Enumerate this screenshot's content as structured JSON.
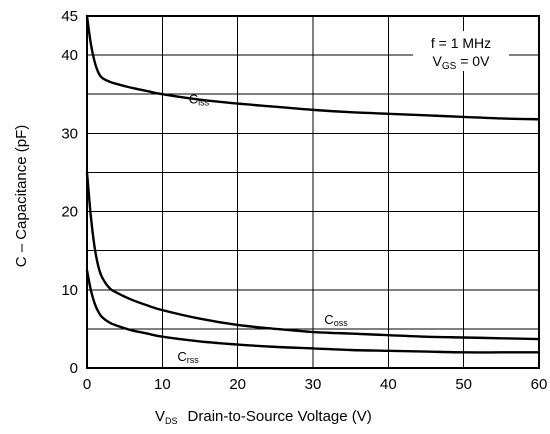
{
  "chart_data": {
    "type": "line",
    "xlabel_prefix": "V",
    "xlabel_prefix_sub": "DS",
    "xlabel": "Drain-to-Source Voltage (V)",
    "ylabel": "C – Capacitance (pF)",
    "xlim": [
      0,
      60
    ],
    "ylim": [
      0,
      45
    ],
    "x_ticks": [
      0,
      10,
      20,
      30,
      40,
      50,
      60
    ],
    "y_ticks": [
      0,
      10,
      20,
      30,
      40,
      45
    ],
    "grid": true,
    "annotation": {
      "line1": "f = 1 MHz",
      "line2_main": "V",
      "line2_sub": "GS",
      "line2_rest": " = 0V"
    },
    "series": [
      {
        "name_main": "C",
        "name_sub": "iss",
        "label_x": 13.5,
        "label_y": 33.8,
        "x": [
          0,
          0.5,
          1,
          1.5,
          2,
          3,
          4,
          6,
          8,
          10,
          15,
          20,
          25,
          30,
          35,
          40,
          45,
          50,
          55,
          60
        ],
        "y": [
          45,
          41.5,
          39.2,
          37.8,
          37.1,
          36.6,
          36.3,
          35.8,
          35.4,
          35.0,
          34.3,
          33.8,
          33.4,
          33.0,
          32.7,
          32.5,
          32.3,
          32.1,
          31.9,
          31.8
        ]
      },
      {
        "name_main": "C",
        "name_sub": "oss",
        "label_x": 31.5,
        "label_y": 5.6,
        "x": [
          0,
          0.5,
          1,
          1.5,
          2,
          3,
          4,
          6,
          8,
          10,
          15,
          20,
          25,
          30,
          35,
          40,
          45,
          50,
          55,
          60
        ],
        "y": [
          25,
          19.5,
          15.5,
          13.0,
          11.6,
          10.2,
          9.6,
          8.7,
          8.0,
          7.4,
          6.3,
          5.5,
          5.0,
          4.6,
          4.4,
          4.2,
          4.0,
          3.9,
          3.8,
          3.7
        ]
      },
      {
        "name_main": "C",
        "name_sub": "rss",
        "label_x": 12.0,
        "label_y": 0.9,
        "x": [
          0,
          0.5,
          1,
          1.5,
          2,
          3,
          4,
          6,
          8,
          10,
          15,
          20,
          25,
          30,
          35,
          40,
          45,
          50,
          55,
          60
        ],
        "y": [
          12.5,
          10.0,
          8.3,
          7.2,
          6.5,
          5.8,
          5.4,
          4.8,
          4.4,
          4.0,
          3.4,
          3.0,
          2.7,
          2.5,
          2.3,
          2.2,
          2.1,
          2.0,
          2.0,
          2.0
        ]
      }
    ]
  }
}
